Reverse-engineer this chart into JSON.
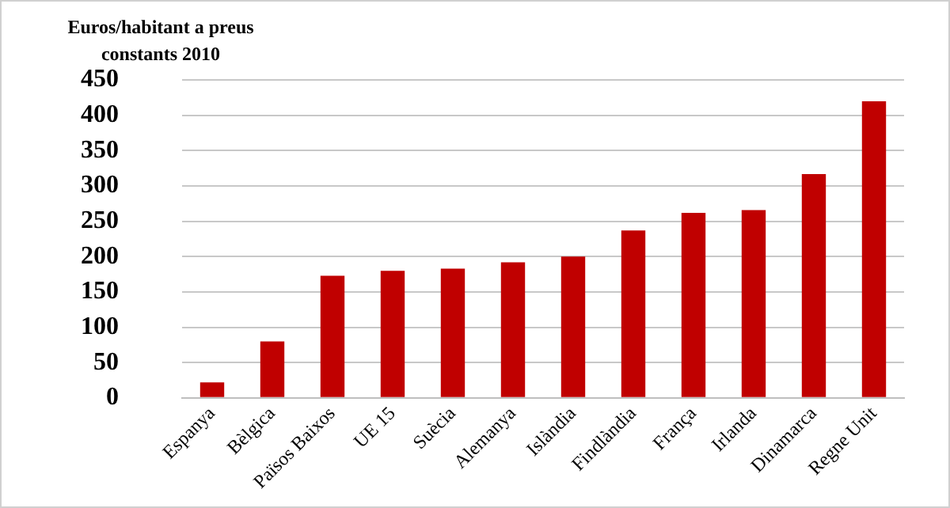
{
  "chart_data": {
    "type": "bar",
    "ylabel": "Euros/habitant a preus constants 2010",
    "categories": [
      "Espanya",
      "Bèlgica",
      "Països Baixos",
      "UE 15",
      "Suècia",
      "Alemanya",
      "Islàndia",
      "Findlàndia",
      "França",
      "Irlanda",
      "Dinamarca",
      "Regne Unit"
    ],
    "values": [
      22,
      80,
      173,
      180,
      183,
      192,
      200,
      237,
      262,
      266,
      317,
      420
    ],
    "color": "#c00000",
    "ylim": [
      0,
      450
    ],
    "yticks": [
      0,
      50,
      100,
      150,
      200,
      250,
      300,
      350,
      400,
      450
    ],
    "grid": "y",
    "legend": false
  }
}
